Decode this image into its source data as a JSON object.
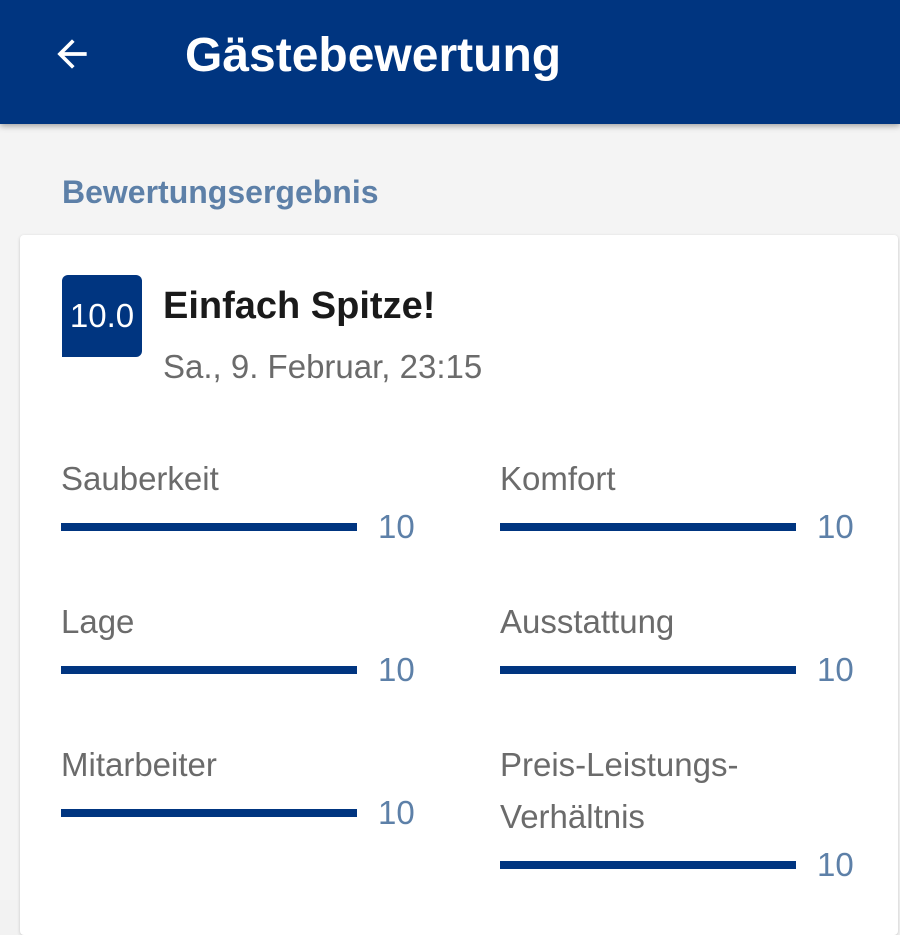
{
  "header": {
    "title": "Gästebewertung",
    "back_icon": "arrow-left-icon"
  },
  "section": {
    "title": "Bewertungsergebnis"
  },
  "review": {
    "score": "10.0",
    "headline": "Einfach Spitze!",
    "date": "Sa., 9. Februar, 23:15",
    "accent_color": "#003580"
  },
  "ratings": [
    {
      "label": "Sauberkeit",
      "value": "10",
      "fraction": 1.0
    },
    {
      "label": "Komfort",
      "value": "10",
      "fraction": 1.0
    },
    {
      "label": "Lage",
      "value": "10",
      "fraction": 1.0
    },
    {
      "label": "Ausstattung",
      "value": "10",
      "fraction": 1.0
    },
    {
      "label": "Mitarbeiter",
      "value": "10",
      "fraction": 1.0
    },
    {
      "label": "Preis-Leistungs-Verhältnis",
      "value": "10",
      "fraction": 1.0
    }
  ]
}
